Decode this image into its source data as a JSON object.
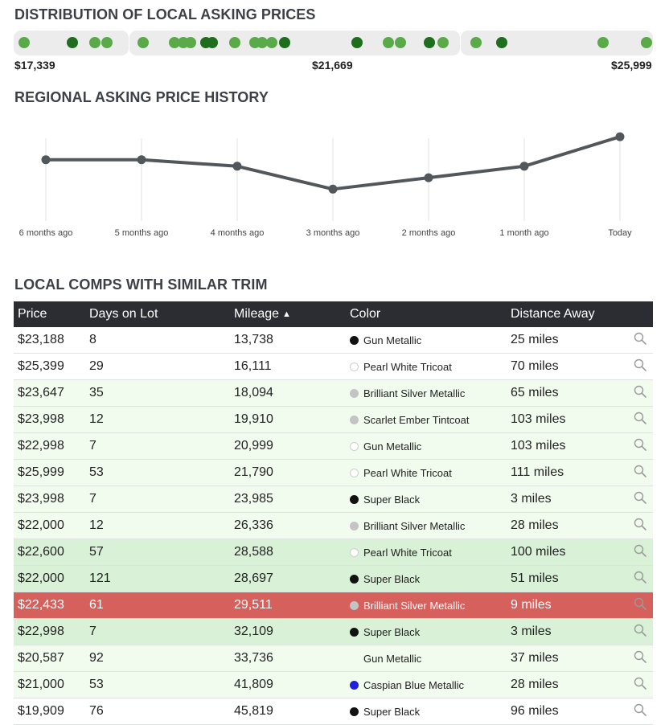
{
  "distribution": {
    "title": "DISTRIBUTION OF LOCAL ASKING PRICES",
    "min_label": "$17,339",
    "mid_label": "$21,669",
    "max_label": "$25,999",
    "min_value": 17339,
    "max_value": 25999,
    "points": [
      {
        "value": 17391,
        "tone": "light"
      },
      {
        "value": 18066,
        "tone": "dark"
      },
      {
        "value": 18369,
        "tone": "light"
      },
      {
        "value": 18543,
        "tone": "light"
      },
      {
        "value": 19041,
        "tone": "light"
      },
      {
        "value": 19478,
        "tone": "light"
      },
      {
        "value": 19591,
        "tone": "light"
      },
      {
        "value": 19695,
        "tone": "light"
      },
      {
        "value": 19909,
        "tone": "dark"
      },
      {
        "value": 20000,
        "tone": "dark"
      },
      {
        "value": 20304,
        "tone": "light"
      },
      {
        "value": 20587,
        "tone": "light"
      },
      {
        "value": 20687,
        "tone": "light"
      },
      {
        "value": 20824,
        "tone": "light"
      },
      {
        "value": 21000,
        "tone": "dark"
      },
      {
        "value": 22000,
        "tone": "dark"
      },
      {
        "value": 22433,
        "tone": "light"
      },
      {
        "value": 22600,
        "tone": "light"
      },
      {
        "value": 22998,
        "tone": "dark"
      },
      {
        "value": 23188,
        "tone": "light"
      },
      {
        "value": 23647,
        "tone": "light"
      },
      {
        "value": 23998,
        "tone": "dark"
      },
      {
        "value": 25399,
        "tone": "light"
      },
      {
        "value": 25999,
        "tone": "light"
      }
    ]
  },
  "history": {
    "title": "REGIONAL ASKING PRICE HISTORY",
    "chart_data": {
      "type": "line",
      "x": [
        "6 months ago",
        "5 months ago",
        "4 months ago",
        "3 months ago",
        "2 months ago",
        "1 month ago",
        "Today"
      ],
      "values": [
        22600,
        22600,
        22400,
        21700,
        22050,
        22400,
        23300
      ],
      "ylim": [
        20800,
        23500
      ],
      "grid": "vertical"
    }
  },
  "comps": {
    "title": "LOCAL COMPS WITH SIMILAR TRIM",
    "columns": [
      "Price",
      "Days on Lot",
      "Mileage",
      "Color",
      "Distance Away"
    ],
    "sort_indicator": "▲",
    "rows": [
      {
        "price": "$23,188",
        "days": "8",
        "mileage": "13,738",
        "color": "Gun Metallic",
        "swatch": "#111111",
        "distance": "25 miles",
        "tint": "none"
      },
      {
        "price": "$25,399",
        "days": "29",
        "mileage": "16,111",
        "color": "Pearl White Tricoat",
        "swatch": "#ffffff",
        "distance": "70 miles",
        "tint": "none"
      },
      {
        "price": "$23,647",
        "days": "35",
        "mileage": "18,094",
        "color": "Brilliant Silver Metallic",
        "swatch": "#c4c4c4",
        "distance": "65 miles",
        "tint": "tint-1"
      },
      {
        "price": "$23,998",
        "days": "12",
        "mileage": "19,910",
        "color": "Scarlet Ember Tintcoat",
        "swatch": "#c4c4c4",
        "distance": "103 miles",
        "tint": "tint-1"
      },
      {
        "price": "$22,998",
        "days": "7",
        "mileage": "20,999",
        "color": "Gun Metallic",
        "swatch": "#ffffff",
        "distance": "103 miles",
        "tint": "tint-1"
      },
      {
        "price": "$25,999",
        "days": "53",
        "mileage": "21,790",
        "color": "Pearl White Tricoat",
        "swatch": "#ffffff",
        "distance": "111 miles",
        "tint": "tint-1"
      },
      {
        "price": "$23,998",
        "days": "7",
        "mileage": "23,985",
        "color": "Super Black",
        "swatch": "#111111",
        "distance": "3 miles",
        "tint": "tint-1"
      },
      {
        "price": "$22,000",
        "days": "12",
        "mileage": "26,336",
        "color": "Brilliant Silver Metallic",
        "swatch": "#c4c4c4",
        "distance": "28 miles",
        "tint": "tint-1"
      },
      {
        "price": "$22,600",
        "days": "57",
        "mileage": "28,588",
        "color": "Pearl White Tricoat",
        "swatch": "#ffffff",
        "distance": "100 miles",
        "tint": "tint-2"
      },
      {
        "price": "$22,000",
        "days": "121",
        "mileage": "28,697",
        "color": "Super Black",
        "swatch": "#111111",
        "distance": "51 miles",
        "tint": "tint-2"
      },
      {
        "price": "$22,433",
        "days": "61",
        "mileage": "29,511",
        "color": "Brilliant Silver Metallic",
        "swatch": "#c4c4c4",
        "distance": "9 miles",
        "tint": "highlight"
      },
      {
        "price": "$22,998",
        "days": "7",
        "mileage": "32,109",
        "color": "Super Black",
        "swatch": "#111111",
        "distance": "3 miles",
        "tint": "tint-2"
      },
      {
        "price": "$20,587",
        "days": "92",
        "mileage": "33,736",
        "color": "Gun Metallic",
        "swatch": "transparent",
        "distance": "37 miles",
        "tint": "tint-1"
      },
      {
        "price": "$21,000",
        "days": "53",
        "mileage": "41,809",
        "color": "Caspian Blue Metallic",
        "swatch": "#1f1fe0",
        "distance": "28 miles",
        "tint": "tint-1"
      },
      {
        "price": "$19,909",
        "days": "76",
        "mileage": "45,819",
        "color": "Super Black",
        "swatch": "#111111",
        "distance": "96 miles",
        "tint": "none"
      }
    ]
  }
}
